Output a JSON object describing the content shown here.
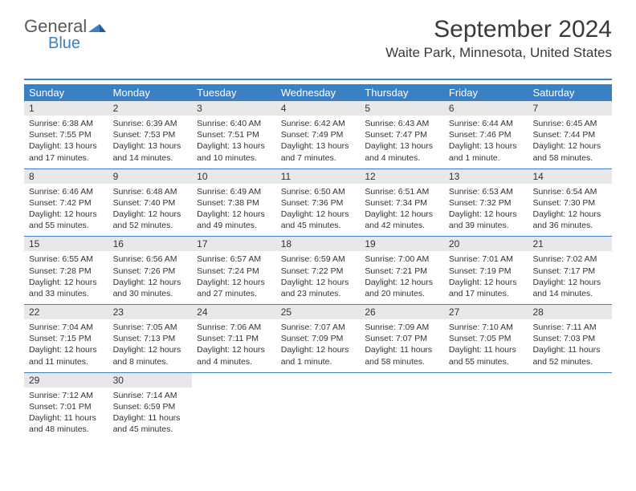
{
  "logo": {
    "general": "General",
    "blue": "Blue"
  },
  "title": "September 2024",
  "location": "Waite Park, Minnesota, United States",
  "colors": {
    "accent": "#3b7fc4",
    "header_bg": "#3b7fc4",
    "daynum_bg": "#e8e8e8",
    "text": "#333333",
    "background": "#ffffff"
  },
  "headers": [
    "Sunday",
    "Monday",
    "Tuesday",
    "Wednesday",
    "Thursday",
    "Friday",
    "Saturday"
  ],
  "weeks": [
    [
      {
        "num": "1",
        "sunrise": "Sunrise: 6:38 AM",
        "sunset": "Sunset: 7:55 PM",
        "daylight": "Daylight: 13 hours and 17 minutes."
      },
      {
        "num": "2",
        "sunrise": "Sunrise: 6:39 AM",
        "sunset": "Sunset: 7:53 PM",
        "daylight": "Daylight: 13 hours and 14 minutes."
      },
      {
        "num": "3",
        "sunrise": "Sunrise: 6:40 AM",
        "sunset": "Sunset: 7:51 PM",
        "daylight": "Daylight: 13 hours and 10 minutes."
      },
      {
        "num": "4",
        "sunrise": "Sunrise: 6:42 AM",
        "sunset": "Sunset: 7:49 PM",
        "daylight": "Daylight: 13 hours and 7 minutes."
      },
      {
        "num": "5",
        "sunrise": "Sunrise: 6:43 AM",
        "sunset": "Sunset: 7:47 PM",
        "daylight": "Daylight: 13 hours and 4 minutes."
      },
      {
        "num": "6",
        "sunrise": "Sunrise: 6:44 AM",
        "sunset": "Sunset: 7:46 PM",
        "daylight": "Daylight: 13 hours and 1 minute."
      },
      {
        "num": "7",
        "sunrise": "Sunrise: 6:45 AM",
        "sunset": "Sunset: 7:44 PM",
        "daylight": "Daylight: 12 hours and 58 minutes."
      }
    ],
    [
      {
        "num": "8",
        "sunrise": "Sunrise: 6:46 AM",
        "sunset": "Sunset: 7:42 PM",
        "daylight": "Daylight: 12 hours and 55 minutes."
      },
      {
        "num": "9",
        "sunrise": "Sunrise: 6:48 AM",
        "sunset": "Sunset: 7:40 PM",
        "daylight": "Daylight: 12 hours and 52 minutes."
      },
      {
        "num": "10",
        "sunrise": "Sunrise: 6:49 AM",
        "sunset": "Sunset: 7:38 PM",
        "daylight": "Daylight: 12 hours and 49 minutes."
      },
      {
        "num": "11",
        "sunrise": "Sunrise: 6:50 AM",
        "sunset": "Sunset: 7:36 PM",
        "daylight": "Daylight: 12 hours and 45 minutes."
      },
      {
        "num": "12",
        "sunrise": "Sunrise: 6:51 AM",
        "sunset": "Sunset: 7:34 PM",
        "daylight": "Daylight: 12 hours and 42 minutes."
      },
      {
        "num": "13",
        "sunrise": "Sunrise: 6:53 AM",
        "sunset": "Sunset: 7:32 PM",
        "daylight": "Daylight: 12 hours and 39 minutes."
      },
      {
        "num": "14",
        "sunrise": "Sunrise: 6:54 AM",
        "sunset": "Sunset: 7:30 PM",
        "daylight": "Daylight: 12 hours and 36 minutes."
      }
    ],
    [
      {
        "num": "15",
        "sunrise": "Sunrise: 6:55 AM",
        "sunset": "Sunset: 7:28 PM",
        "daylight": "Daylight: 12 hours and 33 minutes."
      },
      {
        "num": "16",
        "sunrise": "Sunrise: 6:56 AM",
        "sunset": "Sunset: 7:26 PM",
        "daylight": "Daylight: 12 hours and 30 minutes."
      },
      {
        "num": "17",
        "sunrise": "Sunrise: 6:57 AM",
        "sunset": "Sunset: 7:24 PM",
        "daylight": "Daylight: 12 hours and 27 minutes."
      },
      {
        "num": "18",
        "sunrise": "Sunrise: 6:59 AM",
        "sunset": "Sunset: 7:22 PM",
        "daylight": "Daylight: 12 hours and 23 minutes."
      },
      {
        "num": "19",
        "sunrise": "Sunrise: 7:00 AM",
        "sunset": "Sunset: 7:21 PM",
        "daylight": "Daylight: 12 hours and 20 minutes."
      },
      {
        "num": "20",
        "sunrise": "Sunrise: 7:01 AM",
        "sunset": "Sunset: 7:19 PM",
        "daylight": "Daylight: 12 hours and 17 minutes."
      },
      {
        "num": "21",
        "sunrise": "Sunrise: 7:02 AM",
        "sunset": "Sunset: 7:17 PM",
        "daylight": "Daylight: 12 hours and 14 minutes."
      }
    ],
    [
      {
        "num": "22",
        "sunrise": "Sunrise: 7:04 AM",
        "sunset": "Sunset: 7:15 PM",
        "daylight": "Daylight: 12 hours and 11 minutes."
      },
      {
        "num": "23",
        "sunrise": "Sunrise: 7:05 AM",
        "sunset": "Sunset: 7:13 PM",
        "daylight": "Daylight: 12 hours and 8 minutes."
      },
      {
        "num": "24",
        "sunrise": "Sunrise: 7:06 AM",
        "sunset": "Sunset: 7:11 PM",
        "daylight": "Daylight: 12 hours and 4 minutes."
      },
      {
        "num": "25",
        "sunrise": "Sunrise: 7:07 AM",
        "sunset": "Sunset: 7:09 PM",
        "daylight": "Daylight: 12 hours and 1 minute."
      },
      {
        "num": "26",
        "sunrise": "Sunrise: 7:09 AM",
        "sunset": "Sunset: 7:07 PM",
        "daylight": "Daylight: 11 hours and 58 minutes."
      },
      {
        "num": "27",
        "sunrise": "Sunrise: 7:10 AM",
        "sunset": "Sunset: 7:05 PM",
        "daylight": "Daylight: 11 hours and 55 minutes."
      },
      {
        "num": "28",
        "sunrise": "Sunrise: 7:11 AM",
        "sunset": "Sunset: 7:03 PM",
        "daylight": "Daylight: 11 hours and 52 minutes."
      }
    ],
    [
      {
        "num": "29",
        "sunrise": "Sunrise: 7:12 AM",
        "sunset": "Sunset: 7:01 PM",
        "daylight": "Daylight: 11 hours and 48 minutes."
      },
      {
        "num": "30",
        "sunrise": "Sunrise: 7:14 AM",
        "sunset": "Sunset: 6:59 PM",
        "daylight": "Daylight: 11 hours and 45 minutes."
      },
      null,
      null,
      null,
      null,
      null
    ]
  ]
}
